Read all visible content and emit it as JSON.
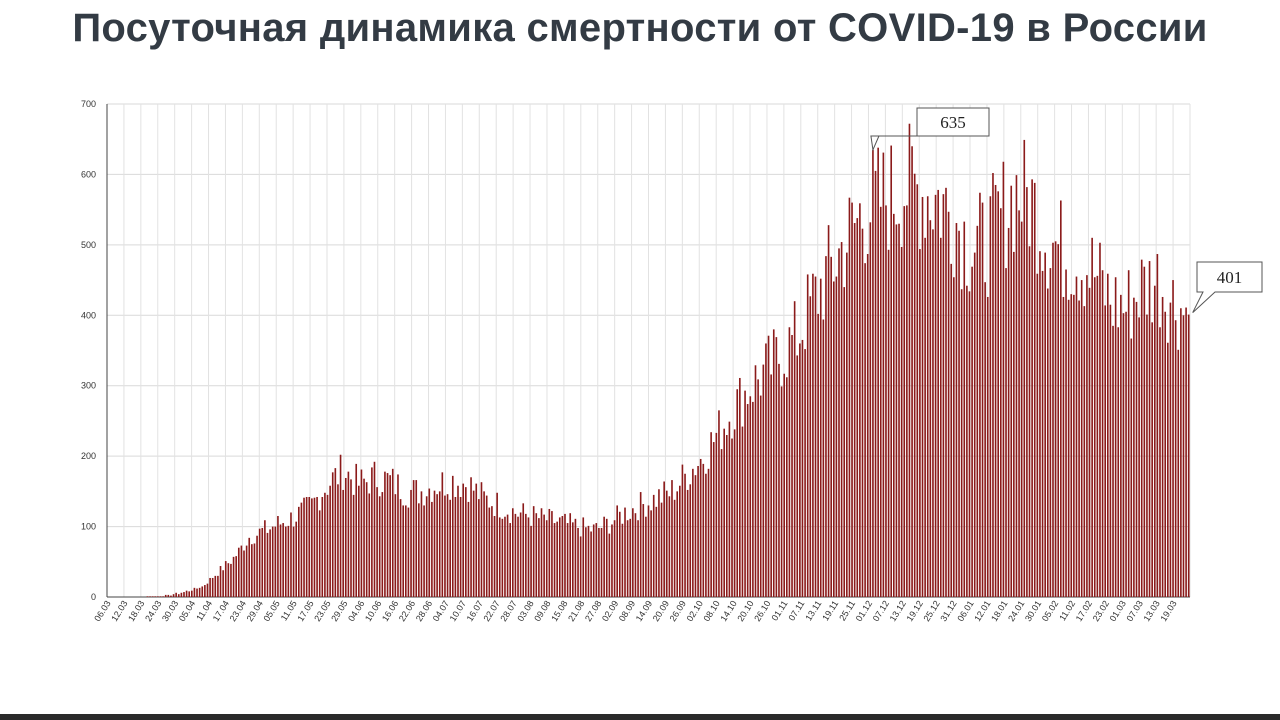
{
  "title": "Посуточная динамика смертности от COVID-19 в России",
  "chart_data": {
    "type": "bar",
    "title": "Посуточная динамика смертности от COVID-19 в России",
    "xlabel": "",
    "ylabel": "",
    "ylim": [
      0,
      700
    ],
    "y_ticks": [
      0,
      100,
      200,
      300,
      400,
      500,
      600,
      700
    ],
    "grid": true,
    "bar_color": "#8b1a1a",
    "x_start": "06.03",
    "x_end": "24.03",
    "x_tick_labels": [
      "06.03",
      "12.03",
      "18.03",
      "24.03",
      "30.03",
      "05.04",
      "11.04",
      "17.04",
      "23.04",
      "29.04",
      "05.05",
      "11.05",
      "17.05",
      "23.05",
      "29.05",
      "04.06",
      "10.06",
      "16.06",
      "22.06",
      "28.06",
      "04.07",
      "10.07",
      "16.07",
      "22.07",
      "28.07",
      "03.08",
      "09.08",
      "15.08",
      "21.08",
      "27.08",
      "02.09",
      "08.09",
      "14.09",
      "20.09",
      "26.09",
      "02.10",
      "08.10",
      "14.10",
      "20.10",
      "26.10",
      "01.11",
      "07.11",
      "13.11",
      "19.11",
      "25.11",
      "01.12",
      "07.12",
      "13.12",
      "19.12",
      "25.12",
      "31.12",
      "06.01",
      "12.01",
      "18.01",
      "24.01",
      "30.01",
      "05.02",
      "11.02",
      "17.02",
      "23.02",
      "01.03",
      "07.03",
      "13.03",
      "19.03"
    ],
    "callouts": [
      {
        "label": "635",
        "value": 635
      },
      {
        "label": "401",
        "value": 401
      }
    ],
    "anchors": [
      [
        0,
        0
      ],
      [
        10,
        0
      ],
      [
        18,
        1
      ],
      [
        24,
        3
      ],
      [
        30,
        8
      ],
      [
        36,
        15
      ],
      [
        42,
        35
      ],
      [
        48,
        55
      ],
      [
        54,
        85
      ],
      [
        60,
        95
      ],
      [
        66,
        105
      ],
      [
        72,
        115
      ],
      [
        78,
        130
      ],
      [
        84,
        160
      ],
      [
        90,
        180
      ],
      [
        96,
        160
      ],
      [
        102,
        170
      ],
      [
        108,
        165
      ],
      [
        114,
        150
      ],
      [
        120,
        150
      ],
      [
        126,
        160
      ],
      [
        132,
        165
      ],
      [
        138,
        160
      ],
      [
        144,
        140
      ],
      [
        150,
        130
      ],
      [
        156,
        120
      ],
      [
        162,
        115
      ],
      [
        168,
        110
      ],
      [
        174,
        105
      ],
      [
        180,
        100
      ],
      [
        186,
        95
      ],
      [
        192,
        105
      ],
      [
        198,
        120
      ],
      [
        204,
        130
      ],
      [
        210,
        140
      ],
      [
        216,
        150
      ],
      [
        222,
        175
      ],
      [
        228,
        200
      ],
      [
        234,
        235
      ],
      [
        240,
        270
      ],
      [
        246,
        300
      ],
      [
        252,
        320
      ],
      [
        258,
        345
      ],
      [
        264,
        370
      ],
      [
        270,
        420
      ],
      [
        276,
        460
      ],
      [
        282,
        500
      ],
      [
        288,
        540
      ],
      [
        294,
        560
      ],
      [
        300,
        570
      ],
      [
        306,
        585
      ],
      [
        312,
        575
      ],
      [
        318,
        565
      ],
      [
        324,
        540
      ],
      [
        330,
        500
      ],
      [
        336,
        500
      ],
      [
        342,
        540
      ],
      [
        348,
        575
      ],
      [
        354,
        560
      ],
      [
        360,
        510
      ],
      [
        366,
        490
      ],
      [
        372,
        480
      ],
      [
        378,
        460
      ],
      [
        384,
        420
      ],
      [
        390,
        410
      ],
      [
        396,
        440
      ],
      [
        402,
        450
      ],
      [
        408,
        420
      ],
      [
        414,
        401
      ]
    ],
    "peak": {
      "day": 293,
      "value": 635
    },
    "seed": 7
  }
}
